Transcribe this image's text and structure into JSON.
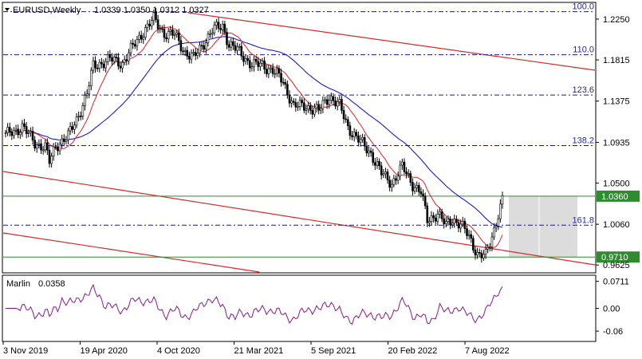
{
  "chart_data": {
    "type": "candlestick",
    "title": {
      "symbol": "EURUSD,Weekly",
      "ohlc": "1.0339 1.0350 1.0312 1.0327"
    },
    "x_ticks": [
      "3 Nov 2019",
      "19 Apr 2020",
      "4 Oct 2020",
      "21 Mar 2021",
      "5 Sep 2021",
      "20 Feb 2022",
      "7 Aug 2022"
    ],
    "y_ticks": [
      "1.2250",
      "1.1815",
      "1.1375",
      "1.0935",
      "1.0500",
      "1.0060",
      "0.9625"
    ],
    "y_tick_values": [
      1.225,
      1.1815,
      1.1375,
      1.0935,
      1.05,
      1.006,
      0.9625
    ],
    "y_range": [
      0.955,
      1.242
    ],
    "fib_levels": [
      {
        "label": "100.0",
        "value": 1.233
      },
      {
        "label": "110.0",
        "value": 1.187
      },
      {
        "label": "123.6",
        "value": 1.144
      },
      {
        "label": "138.2",
        "value": 1.09
      },
      {
        "label": "161.8",
        "value": 1.005
      }
    ],
    "horizontal_levels": [
      {
        "label": "1.0360",
        "value": 1.036,
        "color": "#2e8b2e"
      },
      {
        "label": "0.9710",
        "value": 0.971,
        "color": "#2e8b2e"
      }
    ],
    "series": [
      {
        "role": "price",
        "color": "#000000"
      },
      {
        "role": "fast_ma",
        "color": "#e02020"
      },
      {
        "role": "slow_ma",
        "color": "#1a1ad8"
      }
    ],
    "indicator": {
      "name": "Marlin",
      "value": "0.0358",
      "y_ticks": [
        "0.0711",
        "0.00",
        "-0.06"
      ],
      "y_tick_values": [
        0.0711,
        0.0,
        -0.06
      ],
      "y_range": [
        -0.085,
        0.085
      ],
      "color": "#8a1a8a"
    }
  }
}
